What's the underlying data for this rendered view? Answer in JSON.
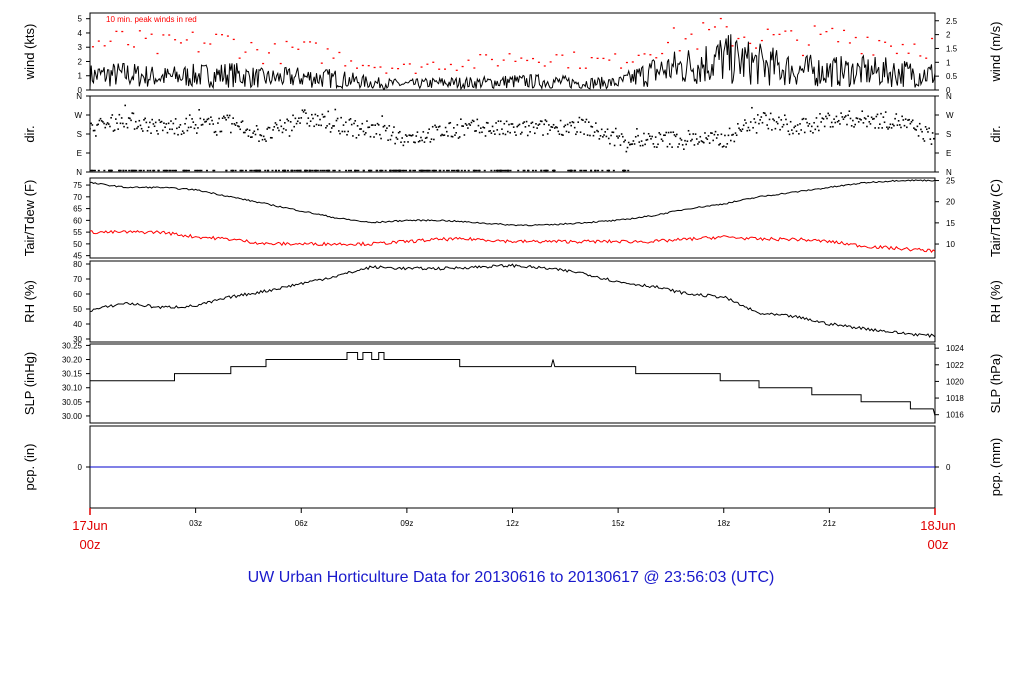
{
  "title": "UW Urban Horticulture Data for 20130616  to  20130617 @ 23:56:03  (UTC)",
  "annotation": "10 min. peak winds in red",
  "colors": {
    "trace": "#000000",
    "peak": "#ff0000",
    "dew": "#ff0000",
    "precip": "#0000cc",
    "title": "#1a1acc",
    "date_label": "#e00000"
  },
  "time_axis": {
    "ticks": [
      "03z",
      "06z",
      "09z",
      "12z",
      "15z",
      "18z",
      "21z"
    ],
    "start_label": [
      "17Jun",
      "00z"
    ],
    "end_label": [
      "18Jun",
      "00z"
    ]
  },
  "chart_data": [
    {
      "type": "line",
      "name": "wind",
      "ylabel": "wind (kts)",
      "ylabel_right": "wind (m/s)",
      "ylim": [
        0,
        5.4
      ],
      "yticks": [
        "0",
        "1",
        "2",
        "3",
        "4",
        "5"
      ],
      "right_ylim": [
        0,
        2.78
      ],
      "right_yticks": [
        "0",
        "0.5",
        "1",
        "1.5",
        "2",
        "2.5"
      ],
      "x": [
        0,
        1,
        2,
        3,
        4,
        5,
        6,
        7,
        8,
        9,
        10,
        11,
        12,
        13,
        14,
        15,
        16,
        17,
        18,
        19,
        20,
        21,
        22,
        23,
        24
      ],
      "mean_wind": [
        1.0,
        1.1,
        0.9,
        1.0,
        1.1,
        0.8,
        0.9,
        0.8,
        0.5,
        0.4,
        0.5,
        0.5,
        0.6,
        0.6,
        0.5,
        0.5,
        1.3,
        1.7,
        2.2,
        1.8,
        1.4,
        1.3,
        1.3,
        1.2,
        1.1
      ],
      "peak_wind": [
        3.2,
        3.4,
        3.0,
        3.3,
        3.4,
        2.5,
        2.8,
        2.4,
        1.8,
        1.5,
        1.9,
        1.9,
        2.3,
        2.4,
        2.0,
        2.0,
        3.1,
        3.6,
        4.0,
        3.7,
        3.4,
        3.6,
        3.6,
        3.2,
        3.1
      ]
    },
    {
      "type": "scatter",
      "name": "direction",
      "ylabel": "dir.",
      "ylabel_right": "dir.",
      "ylim": [
        0,
        360
      ],
      "yticks": [
        "N",
        "E",
        "S",
        "W",
        "N"
      ],
      "x": [
        0,
        1,
        2,
        3,
        4,
        5,
        6,
        7,
        8,
        9,
        10,
        11,
        12,
        13,
        14,
        15,
        16,
        17,
        18,
        19,
        20,
        21,
        22,
        23,
        24
      ],
      "values": [
        200,
        250,
        210,
        220,
        230,
        170,
        260,
        220,
        200,
        160,
        190,
        210,
        200,
        210,
        220,
        150,
        150,
        160,
        150,
        260,
        200,
        250,
        250,
        240,
        160
      ]
    },
    {
      "type": "line",
      "name": "temperature",
      "ylabel": "Tair/Tdew (F)",
      "ylabel_right": "Tair/Tdew (C)",
      "ylim": [
        44,
        78
      ],
      "yticks": [
        "45",
        "50",
        "55",
        "60",
        "65",
        "70",
        "75"
      ],
      "right_ylim": [
        6.7,
        25.6
      ],
      "right_yticks": [
        "10",
        "15",
        "20",
        "25"
      ],
      "x": [
        0,
        1,
        2,
        3,
        4,
        5,
        6,
        7,
        8,
        9,
        10,
        11,
        12,
        13,
        14,
        15,
        16,
        17,
        18,
        19,
        20,
        21,
        22,
        23,
        24
      ],
      "series": [
        {
          "name": "Tair",
          "values": [
            76,
            74,
            74,
            73,
            70,
            67,
            64,
            61,
            59,
            60,
            60,
            59,
            58,
            58,
            59,
            60,
            62,
            65,
            67,
            70,
            72,
            74,
            76,
            77,
            77
          ]
        },
        {
          "name": "Tdew",
          "values": [
            55,
            55,
            55,
            53,
            52,
            50,
            50,
            50,
            50,
            51,
            52,
            52,
            51,
            51,
            51,
            51,
            51,
            52,
            53,
            52,
            52,
            51,
            49,
            48,
            47
          ]
        }
      ]
    },
    {
      "type": "line",
      "name": "humidity",
      "ylabel": "RH (%)",
      "ylabel_right": "RH (%)",
      "ylim": [
        28,
        82
      ],
      "yticks": [
        "30",
        "40",
        "50",
        "60",
        "70",
        "80"
      ],
      "x": [
        0,
        1,
        2,
        3,
        4,
        5,
        6,
        7,
        8,
        9,
        10,
        11,
        12,
        13,
        14,
        15,
        16,
        17,
        18,
        19,
        20,
        21,
        22,
        23,
        24
      ],
      "values": [
        49,
        54,
        51,
        52,
        58,
        62,
        67,
        72,
        78,
        77,
        77,
        78,
        79,
        77,
        74,
        68,
        65,
        60,
        58,
        47,
        45,
        40,
        37,
        34,
        32
      ]
    },
    {
      "type": "line",
      "name": "pressure",
      "ylabel": "SLP (inHg)",
      "ylabel_right": "SLP (hPa)",
      "ylim": [
        29.975,
        30.255
      ],
      "yticks": [
        "30.00",
        "30.05",
        "30.10",
        "30.15",
        "30.20",
        "30.25"
      ],
      "right_ylim": [
        1015.0,
        1024.5
      ],
      "right_yticks": [
        "1016",
        "1018",
        "1020",
        "1022",
        "1024"
      ],
      "x": [
        0,
        2.4,
        2.4,
        4.0,
        4.0,
        5.0,
        5.0,
        7.3,
        7.3,
        7.6,
        7.6,
        7.75,
        7.75,
        8.0,
        8.0,
        8.2,
        8.2,
        8.35,
        8.35,
        10.5,
        10.5,
        13.1,
        13.15,
        13.2,
        13.3,
        15.5,
        15.5,
        17.9,
        17.9,
        19.0,
        19.0,
        20.5,
        20.5,
        21.9,
        21.9,
        23.3,
        23.3,
        23.95,
        24.0
      ],
      "values": [
        30.125,
        30.125,
        30.15,
        30.15,
        30.175,
        30.175,
        30.2,
        30.2,
        30.225,
        30.225,
        30.2,
        30.2,
        30.225,
        30.225,
        30.2,
        30.2,
        30.225,
        30.225,
        30.2,
        30.2,
        30.175,
        30.175,
        30.2,
        30.175,
        30.175,
        30.175,
        30.15,
        30.15,
        30.125,
        30.125,
        30.1,
        30.1,
        30.075,
        30.075,
        30.05,
        30.05,
        30.025,
        30.025,
        30.0
      ]
    },
    {
      "type": "line",
      "name": "precipitation",
      "ylabel": "pcp. (in)",
      "ylabel_right": "pcp. (mm)",
      "ylim": [
        -1,
        1
      ],
      "yticks": [
        "0"
      ],
      "right_yticks": [
        "0"
      ],
      "x": [
        0,
        24
      ],
      "values": [
        0,
        0
      ]
    }
  ]
}
